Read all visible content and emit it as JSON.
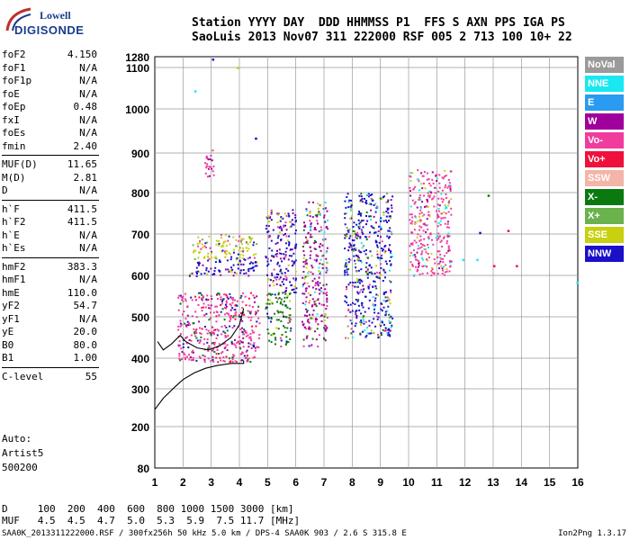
{
  "logo": {
    "line1": "Lowell",
    "line2": "DIGISONDE"
  },
  "header": {
    "line1": "Station YYYY DAY  DDD HHMMSS P1  FFS S AXN PPS IGA PS",
    "line2": "SaoLuis 2013 Nov07 311 222000 RSF 005 2 713 100 10+ 22"
  },
  "params_groups": [
    [
      {
        "label": "foF2",
        "value": "4.150"
      },
      {
        "label": "foF1",
        "value": "N/A"
      },
      {
        "label": "foF1p",
        "value": "N/A"
      },
      {
        "label": "foE",
        "value": "N/A"
      },
      {
        "label": "foEp",
        "value": "0.48"
      },
      {
        "label": "fxI",
        "value": "N/A"
      },
      {
        "label": "foEs",
        "value": "N/A"
      },
      {
        "label": "fmin",
        "value": "2.40"
      }
    ],
    [
      {
        "label": "MUF(D)",
        "value": "11.65"
      },
      {
        "label": "M(D)",
        "value": "2.81"
      },
      {
        "label": "D",
        "value": "N/A"
      }
    ],
    [
      {
        "label": "h`F",
        "value": "411.5"
      },
      {
        "label": "h`F2",
        "value": "411.5"
      },
      {
        "label": "h`E",
        "value": "N/A"
      },
      {
        "label": "h`Es",
        "value": "N/A"
      }
    ],
    [
      {
        "label": "hmF2",
        "value": "383.3"
      },
      {
        "label": "hmF1",
        "value": "N/A"
      },
      {
        "label": "hmE",
        "value": "110.0"
      },
      {
        "label": "yF2",
        "value": "54.7"
      },
      {
        "label": "yF1",
        "value": "N/A"
      },
      {
        "label": "yE",
        "value": "20.0"
      },
      {
        "label": "B0",
        "value": "80.0"
      },
      {
        "label": "B1",
        "value": "1.00"
      }
    ],
    [
      {
        "label": "C-level",
        "value": "55"
      }
    ]
  ],
  "auto": {
    "line1": "Auto:",
    "line2": "Artist5",
    "line3": "500200"
  },
  "legend": [
    {
      "label": "NoVal",
      "color": "#9a9a9a"
    },
    {
      "label": "NNE",
      "color": "#19e8f2"
    },
    {
      "label": "E",
      "color": "#2a9bf0"
    },
    {
      "label": "W",
      "color": "#a0009c"
    },
    {
      "label": "Vo-",
      "color": "#f03c9c"
    },
    {
      "label": "Vo+",
      "color": "#f0103c"
    },
    {
      "label": "SSW",
      "color": "#f4b4a8"
    },
    {
      "label": "X-",
      "color": "#0a7a10"
    },
    {
      "label": "X+",
      "color": "#6ab24c"
    },
    {
      "label": "SSE",
      "color": "#c8d010"
    },
    {
      "label": "NNW",
      "color": "#1a10c8"
    }
  ],
  "muf_table": {
    "row1": "D     100  200  400  600  800 1000 1500 3000 [km]",
    "row2": "MUF   4.5  4.5  4.7  5.0  5.3  5.9  7.5 11.7 [MHz]"
  },
  "footer": {
    "left": "SAA0K_2013311222000.RSF / 300fx256h 50 kHz 5.0 km / DPS-4 SAA0K 903 / 2.6 S 315.8 E",
    "right": "Ion2Png 1.3.17"
  },
  "chart_data": {
    "type": "scatter",
    "xlabel": "",
    "ylabel": "",
    "xlim": [
      1,
      16
    ],
    "ylim": [
      80,
      1280
    ],
    "x_ticks": [
      1,
      2,
      3,
      4,
      5,
      6,
      7,
      8,
      9,
      10,
      11,
      12,
      13,
      14,
      15,
      16
    ],
    "y_ticks": [
      80,
      200,
      300,
      400,
      500,
      600,
      700,
      800,
      900,
      1000,
      1100,
      1280
    ],
    "grid": true,
    "echo_clusters": [
      {
        "f_range": [
          1.8,
          4.7
        ],
        "h_range": [
          390,
          560
        ],
        "dominant": "Vo-",
        "mix": [
          "Vo-",
          "Vo+",
          "W",
          "NNW",
          "X-"
        ]
      },
      {
        "f_range": [
          2.2,
          4.6
        ],
        "h_range": [
          600,
          640
        ],
        "dominant": "NNW",
        "mix": [
          "NNW",
          "W",
          "SSE"
        ]
      },
      {
        "f_range": [
          2.3,
          4.6
        ],
        "h_range": [
          640,
          700
        ],
        "dominant": "SSE",
        "mix": [
          "SSE",
          "X+",
          "Vo-",
          "NNW"
        ]
      },
      {
        "f_range": [
          4.9,
          5.8
        ],
        "h_range": [
          430,
          560
        ],
        "dominant": "X-",
        "mix": [
          "X-",
          "Vo-",
          "SSE",
          "NNW"
        ]
      },
      {
        "f_range": [
          4.9,
          6.0
        ],
        "h_range": [
          560,
          760
        ],
        "dominant": "NNW",
        "mix": [
          "NNW",
          "W",
          "Vo-",
          "SSE"
        ]
      },
      {
        "f_range": [
          6.2,
          7.1
        ],
        "h_range": [
          430,
          780
        ],
        "dominant": "W",
        "mix": [
          "W",
          "Vo-",
          "X-",
          "NNE",
          "SSE"
        ]
      },
      {
        "f_range": [
          7.7,
          9.4
        ],
        "h_range": [
          450,
          800
        ],
        "dominant": "NNW",
        "mix": [
          "NNW",
          "NNE",
          "W",
          "Vo-",
          "SSE",
          "X+",
          "X-"
        ]
      },
      {
        "f_range": [
          10.0,
          11.5
        ],
        "h_range": [
          600,
          860
        ],
        "dominant": "Vo-",
        "mix": [
          "Vo-",
          "SSE",
          "NNE",
          "W"
        ]
      },
      {
        "f_range": [
          2.7,
          3.1
        ],
        "h_range": [
          840,
          910
        ],
        "dominant": "Vo-",
        "mix": [
          "Vo-",
          "W"
        ]
      }
    ],
    "isolated_points": [
      {
        "f": 3.03,
        "h": 1250,
        "dir": "NNW"
      },
      {
        "f": 3.9,
        "h": 1110,
        "dir": "SSE"
      },
      {
        "f": 2.4,
        "h": 1045,
        "dir": "NNE"
      },
      {
        "f": 4.55,
        "h": 935,
        "dir": "NNW"
      },
      {
        "f": 12.5,
        "h": 705,
        "dir": "NNW"
      },
      {
        "f": 12.8,
        "h": 795,
        "dir": "X-"
      },
      {
        "f": 13.5,
        "h": 710,
        "dir": "Vo+"
      },
      {
        "f": 13.0,
        "h": 625,
        "dir": "Vo+"
      },
      {
        "f": 13.8,
        "h": 625,
        "dir": "Vo+"
      },
      {
        "f": 12.4,
        "h": 640,
        "dir": "NNE"
      },
      {
        "f": 15.95,
        "h": 585,
        "dir": "NNE"
      },
      {
        "f": 11.9,
        "h": 640,
        "dir": "NNE"
      }
    ],
    "profile_curve": [
      [
        1,
        245
      ],
      [
        1.3,
        275
      ],
      [
        1.7,
        305
      ],
      [
        2.0,
        330
      ],
      [
        2.4,
        352
      ],
      [
        2.8,
        367
      ],
      [
        3.2,
        376
      ],
      [
        3.7,
        383
      ],
      [
        4.15,
        383
      ],
      [
        4.15,
        393
      ]
    ],
    "trace_curve": [
      [
        1.1,
        440
      ],
      [
        1.3,
        420
      ],
      [
        1.6,
        435
      ],
      [
        1.9,
        455
      ],
      [
        2.1,
        440
      ],
      [
        2.5,
        425
      ],
      [
        2.9,
        420
      ],
      [
        3.3,
        430
      ],
      [
        3.7,
        450
      ],
      [
        4.0,
        480
      ],
      [
        4.15,
        520
      ]
    ]
  }
}
